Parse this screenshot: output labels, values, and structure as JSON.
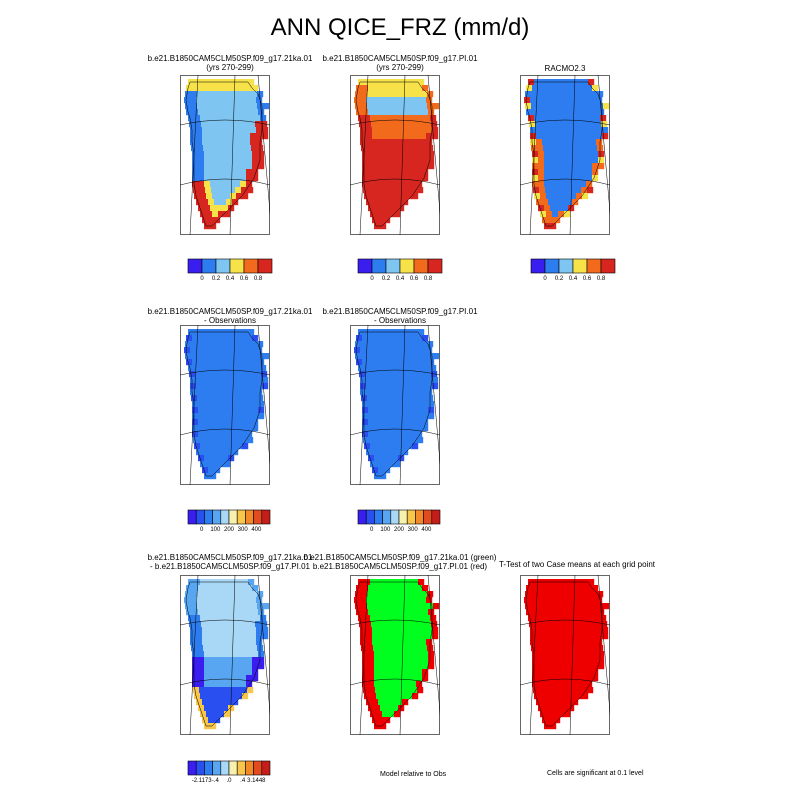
{
  "title": "ANN QICE_FRZ (mm/d)",
  "colors": {
    "levels_6": [
      "#3a1ef0",
      "#2e7df0",
      "#7ec5f2",
      "#f8e24a",
      "#f26a1c",
      "#d6261f"
    ],
    "obs_10": [
      "#3a1ef0",
      "#2a4ff0",
      "#2e7df0",
      "#58a6f2",
      "#a8d8f5",
      "#f7f1b0",
      "#f8c64a",
      "#f28a2a",
      "#e24a1f",
      "#c41e1a"
    ],
    "diff_10": [
      "#3a1ef0",
      "#2a4ff0",
      "#2e7df0",
      "#58a6f2",
      "#a8d8f5",
      "#f7f1b0",
      "#f8c64a",
      "#f28a2a",
      "#e24a1f",
      "#c41e1a"
    ],
    "sig_green": "#00ff1e",
    "sig_red": "#ee0000"
  },
  "panels": [
    {
      "title_lines": [
        "b.e21.B1850CAM5CLM50SP.f09_g17.21ka.01",
        "(yrs 270-299)"
      ],
      "map": "model_21ka"
    },
    {
      "title_lines": [
        "b.e21.B1850CAM5CLM50SP.f09_g17.PI.01",
        "(yrs 270-299)"
      ],
      "map": "model_pi"
    },
    {
      "title_lines": [
        "RACMO2.3"
      ],
      "map": "racmo"
    },
    {
      "title_lines": [
        "b.e21.B1850CAM5CLM50SP.f09_g17.21ka.01",
        "- Observations"
      ],
      "map": "obs"
    },
    {
      "title_lines": [
        "b.e21.B1850CAM5CLM50SP.f09_g17.PI.01",
        "- Observations"
      ],
      "map": "obs"
    },
    {
      "title_lines": [
        "b.e21.B1850CAM5CLM50SP.f09_g17.21ka.01",
        "- b.e21.B1850CAM5CLM50SP.f09_g17.PI.01"
      ],
      "map": "diff"
    },
    {
      "title_lines": [
        "b.e21.B1850CAM5CLM50SP.f09_g17.21ka.01 (green)",
        "b.e21.B1850CAM5CLM50SP.f09_g17.PI.01 (red)"
      ],
      "map": "sig_gr"
    },
    {
      "title_lines": [
        "T-Test of two Case means at each grid point"
      ],
      "map": "sig_red"
    }
  ],
  "colorbars": {
    "row1_labels": [
      "0",
      "0.2",
      "0.4",
      "0.6",
      "0.8"
    ],
    "row2_labels": [
      "0",
      "100",
      "200",
      "300",
      "400"
    ],
    "row3_labels": [
      "-2.1173",
      "-.4",
      ".0",
      ".4",
      "3.1448"
    ]
  },
  "notes": {
    "model_relative": "Model relative to Obs",
    "significance": "Cells are significant at 0.1 level"
  },
  "chart_data": {
    "type": "heatmap",
    "title": "ANN QICE_FRZ (mm/d)",
    "subplots": [
      {
        "panel": "21ka.01 (yrs 270-299)",
        "variable": "QICE_FRZ",
        "units": "mm/d",
        "contour_levels": [
          0,
          0.2,
          0.4,
          0.6,
          0.8
        ],
        "pattern": "interior 0.2-0.4, margins >0.8, north coast 0.4-0.6"
      },
      {
        "panel": "PI.01 (yrs 270-299)",
        "contour_levels": [
          0,
          0.2,
          0.4,
          0.6,
          0.8
        ],
        "pattern": "south/central >0.8, north 0.2-0.6"
      },
      {
        "panel": "RACMO2.3",
        "contour_levels": [
          0,
          0.2,
          0.4,
          0.6,
          0.8
        ],
        "pattern": "mostly 0-0.2, margins 0.4->0.8"
      },
      {
        "panel": "21ka.01 - Observations",
        "contour_levels": [
          0,
          100,
          200,
          300,
          400
        ],
        "pattern": "uniform 0-100"
      },
      {
        "panel": "PI.01 - Observations",
        "contour_levels": [
          0,
          100,
          200,
          300,
          400
        ],
        "pattern": "uniform 0-100"
      },
      {
        "panel": "21ka.01 - PI.01",
        "contour_levels": [
          -2.1173,
          -0.4,
          0.0,
          0.4,
          3.1448
        ],
        "pattern": "negative south/west, near zero north"
      },
      {
        "panel": "Model relative to Obs",
        "pattern": "green interior, red margins"
      },
      {
        "panel": "T-Test",
        "significance_level": 0.1,
        "pattern": "all significant (red)"
      }
    ]
  }
}
